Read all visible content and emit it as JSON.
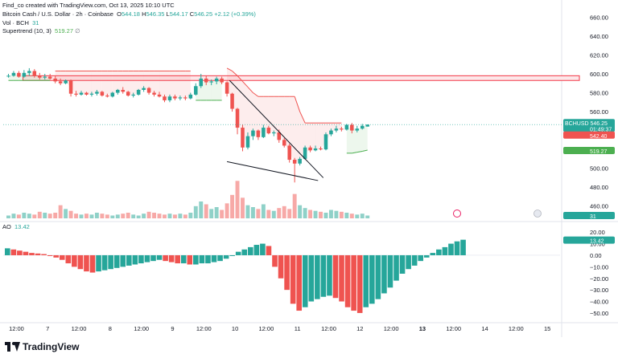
{
  "attribution": "Find_co created with TradingView.com, Oct 13, 2025 10:10 UTC",
  "header": {
    "symbol": "Bitcoin Cash / U.S. Dollar · 2h · Coinbase",
    "o_label": "O",
    "o_value": "544.18",
    "h_label": "H",
    "h_value": "546.35",
    "l_label": "L",
    "l_value": "544.17",
    "c_label": "C",
    "c_value": "546.25",
    "change": "+2.12 (+0.39%)",
    "vol_label": "Vol · BCH",
    "vol_value": "31",
    "st_label": "Supertrend (10, 3)",
    "st_value": "519.27"
  },
  "ao_header": {
    "label": "AO",
    "value": "13.42"
  },
  "brand": "TradingView",
  "colors": {
    "up": "#26a69a",
    "down": "#ef5350",
    "vol_up": "#8fd1c8",
    "vol_down": "#f7a9a7",
    "st_up": "#4caf50",
    "st_down": "#ef5350",
    "resistance_fill": "#fde7e9",
    "resistance_border": "#f23645",
    "trendline": "#131722"
  },
  "price_badges": [
    {
      "text": "BCHUSD",
      "value": "546.25",
      "sub": "01:49:37",
      "color": "#26a69a"
    },
    {
      "value": "542.40",
      "color": "#ef5350"
    },
    {
      "value": "519.27",
      "color": "#4caf50"
    },
    {
      "value": "31",
      "color": "#26a69a"
    },
    {
      "value": "13.42",
      "color": "#26a69a"
    }
  ],
  "chart_data": {
    "type": "candlestick",
    "price_axis": {
      "ticks": [
        460,
        480,
        500,
        520,
        540,
        560,
        580,
        600,
        620,
        640,
        660
      ],
      "ylim": [
        447,
        668
      ]
    },
    "ao_axis": {
      "ticks": [
        20,
        10,
        0,
        -10,
        -20,
        -30,
        -40,
        -50
      ],
      "tick_labels": [
        "20.00",
        "10.00",
        "0.00",
        "−10.00",
        "−20.00",
        "−30.00",
        "−40.00",
        "−50.00"
      ],
      "ylim": [
        -57,
        25
      ]
    },
    "x_axis": {
      "tick_labels": [
        "12:00",
        "7",
        "12:00",
        "8",
        "12:00",
        "9",
        "12:00",
        "10",
        "12:00",
        "11",
        "12:00",
        "12",
        "12:00",
        "13",
        "12:00",
        "14",
        "12:00",
        "15"
      ],
      "tick_index": [
        0,
        6,
        12,
        18,
        24,
        30,
        36,
        42,
        48,
        54,
        60,
        66,
        72,
        78,
        84,
        90,
        96,
        102
      ],
      "bold_labels": [
        "13"
      ],
      "xlim": [
        -1,
        106
      ]
    },
    "candles": [
      {
        "o": 598,
        "h": 600,
        "l": 596,
        "c": 598
      },
      {
        "o": 598,
        "h": 603,
        "l": 597,
        "c": 601
      },
      {
        "o": 601,
        "h": 603,
        "l": 596,
        "c": 597
      },
      {
        "o": 597,
        "h": 604,
        "l": 596,
        "c": 601
      },
      {
        "o": 601,
        "h": 606,
        "l": 598,
        "c": 603
      },
      {
        "o": 603,
        "h": 605,
        "l": 596,
        "c": 598
      },
      {
        "o": 598,
        "h": 601,
        "l": 594,
        "c": 596
      },
      {
        "o": 596,
        "h": 600,
        "l": 594,
        "c": 597
      },
      {
        "o": 597,
        "h": 600,
        "l": 594,
        "c": 595
      },
      {
        "o": 595,
        "h": 598,
        "l": 590,
        "c": 592
      },
      {
        "o": 592,
        "h": 595,
        "l": 588,
        "c": 590
      },
      {
        "o": 590,
        "h": 594,
        "l": 589,
        "c": 593
      },
      {
        "o": 593,
        "h": 594,
        "l": 576,
        "c": 579
      },
      {
        "o": 579,
        "h": 582,
        "l": 576,
        "c": 578
      },
      {
        "o": 578,
        "h": 582,
        "l": 577,
        "c": 580
      },
      {
        "o": 580,
        "h": 581,
        "l": 577,
        "c": 578
      },
      {
        "o": 578,
        "h": 581,
        "l": 576,
        "c": 579
      },
      {
        "o": 579,
        "h": 583,
        "l": 577,
        "c": 581
      },
      {
        "o": 581,
        "h": 582,
        "l": 576,
        "c": 577
      },
      {
        "o": 577,
        "h": 579,
        "l": 575,
        "c": 576
      },
      {
        "o": 576,
        "h": 581,
        "l": 575,
        "c": 580
      },
      {
        "o": 580,
        "h": 584,
        "l": 578,
        "c": 583
      },
      {
        "o": 583,
        "h": 586,
        "l": 579,
        "c": 581
      },
      {
        "o": 581,
        "h": 582,
        "l": 576,
        "c": 577
      },
      {
        "o": 577,
        "h": 580,
        "l": 575,
        "c": 578
      },
      {
        "o": 578,
        "h": 584,
        "l": 577,
        "c": 583
      },
      {
        "o": 583,
        "h": 587,
        "l": 581,
        "c": 585
      },
      {
        "o": 585,
        "h": 586,
        "l": 578,
        "c": 580
      },
      {
        "o": 580,
        "h": 582,
        "l": 576,
        "c": 578
      },
      {
        "o": 578,
        "h": 581,
        "l": 575,
        "c": 576
      },
      {
        "o": 576,
        "h": 578,
        "l": 570,
        "c": 572
      },
      {
        "o": 572,
        "h": 578,
        "l": 570,
        "c": 576
      },
      {
        "o": 576,
        "h": 578,
        "l": 572,
        "c": 574
      },
      {
        "o": 574,
        "h": 577,
        "l": 572,
        "c": 575
      },
      {
        "o": 575,
        "h": 577,
        "l": 572,
        "c": 574
      },
      {
        "o": 574,
        "h": 580,
        "l": 573,
        "c": 578
      },
      {
        "o": 578,
        "h": 590,
        "l": 577,
        "c": 587
      },
      {
        "o": 587,
        "h": 600,
        "l": 585,
        "c": 595
      },
      {
        "o": 595,
        "h": 598,
        "l": 588,
        "c": 591
      },
      {
        "o": 591,
        "h": 594,
        "l": 588,
        "c": 592
      },
      {
        "o": 592,
        "h": 597,
        "l": 589,
        "c": 595
      },
      {
        "o": 595,
        "h": 597,
        "l": 589,
        "c": 591
      },
      {
        "o": 591,
        "h": 592,
        "l": 576,
        "c": 579
      },
      {
        "o": 579,
        "h": 580,
        "l": 560,
        "c": 563
      },
      {
        "o": 563,
        "h": 564,
        "l": 536,
        "c": 543
      },
      {
        "o": 543,
        "h": 546,
        "l": 518,
        "c": 522
      },
      {
        "o": 522,
        "h": 538,
        "l": 520,
        "c": 534
      },
      {
        "o": 534,
        "h": 542,
        "l": 530,
        "c": 540
      },
      {
        "o": 540,
        "h": 541,
        "l": 530,
        "c": 533
      },
      {
        "o": 533,
        "h": 546,
        "l": 532,
        "c": 543
      },
      {
        "o": 543,
        "h": 545,
        "l": 536,
        "c": 537
      },
      {
        "o": 537,
        "h": 540,
        "l": 534,
        "c": 538
      },
      {
        "o": 538,
        "h": 541,
        "l": 527,
        "c": 530
      },
      {
        "o": 530,
        "h": 532,
        "l": 522,
        "c": 524
      },
      {
        "o": 524,
        "h": 526,
        "l": 506,
        "c": 509
      },
      {
        "o": 509,
        "h": 511,
        "l": 485,
        "c": 505
      },
      {
        "o": 505,
        "h": 512,
        "l": 503,
        "c": 510
      },
      {
        "o": 510,
        "h": 524,
        "l": 509,
        "c": 522
      },
      {
        "o": 522,
        "h": 524,
        "l": 517,
        "c": 519
      },
      {
        "o": 519,
        "h": 524,
        "l": 518,
        "c": 521
      },
      {
        "o": 521,
        "h": 523,
        "l": 519,
        "c": 520
      },
      {
        "o": 520,
        "h": 538,
        "l": 519,
        "c": 536
      },
      {
        "o": 536,
        "h": 542,
        "l": 534,
        "c": 540
      },
      {
        "o": 540,
        "h": 545,
        "l": 538,
        "c": 542
      },
      {
        "o": 542,
        "h": 544,
        "l": 539,
        "c": 541
      },
      {
        "o": 541,
        "h": 547,
        "l": 540,
        "c": 546
      },
      {
        "o": 546,
        "h": 548,
        "l": 537,
        "c": 540
      },
      {
        "o": 540,
        "h": 545,
        "l": 538,
        "c": 542
      },
      {
        "o": 542,
        "h": 547,
        "l": 541,
        "c": 545
      },
      {
        "o": 544.18,
        "h": 546.35,
        "l": 544.17,
        "c": 546.25
      }
    ],
    "volumes": [
      3,
      5,
      4,
      6,
      5,
      4,
      7,
      6,
      5,
      6,
      14,
      10,
      8,
      5,
      4,
      5,
      4,
      6,
      5,
      4,
      3,
      4,
      5,
      6,
      4,
      3,
      5,
      7,
      6,
      5,
      4,
      5,
      4,
      5,
      4,
      6,
      13,
      18,
      15,
      10,
      12,
      9,
      16,
      25,
      40,
      22,
      14,
      12,
      10,
      15,
      9,
      8,
      11,
      13,
      10,
      26,
      14,
      11,
      9,
      8,
      7,
      6,
      9,
      8,
      7,
      6,
      5,
      4,
      5,
      3
    ],
    "supertrend": [
      593,
      593,
      593,
      593,
      593,
      593,
      593,
      593,
      593,
      603,
      603,
      603,
      603,
      603,
      603,
      603,
      603,
      603,
      603,
      603,
      603,
      603,
      603,
      603,
      603,
      603,
      603,
      603,
      603,
      603,
      603,
      603,
      603,
      603,
      603,
      603,
      572,
      572,
      572,
      572,
      572,
      572,
      606,
      603,
      598,
      592,
      586,
      580,
      576,
      576,
      576,
      576,
      576,
      576,
      576,
      576,
      560,
      548,
      548,
      548,
      548,
      548,
      548,
      548,
      548,
      516,
      516,
      517,
      518,
      519.27
    ],
    "supertrend_dir": [
      "up",
      "up",
      "up",
      "up",
      "up",
      "up",
      "up",
      "up",
      "up",
      "down",
      "down",
      "down",
      "down",
      "down",
      "down",
      "down",
      "down",
      "down",
      "down",
      "down",
      "down",
      "down",
      "down",
      "down",
      "down",
      "down",
      "down",
      "down",
      "down",
      "down",
      "down",
      "down",
      "down",
      "down",
      "down",
      "down",
      "up",
      "up",
      "up",
      "up",
      "up",
      "up",
      "down",
      "down",
      "down",
      "down",
      "down",
      "down",
      "down",
      "down",
      "down",
      "down",
      "down",
      "down",
      "down",
      "down",
      "down",
      "down",
      "down",
      "down",
      "down",
      "down",
      "down",
      "down",
      "down",
      "up",
      "up",
      "up",
      "up",
      "up"
    ],
    "ao": [
      6,
      5,
      4,
      3,
      2,
      1.5,
      1,
      0,
      -2,
      -4,
      -7,
      -10,
      -12,
      -14,
      -15,
      -14,
      -13,
      -12,
      -11,
      -10,
      -9,
      -8,
      -7,
      -6,
      -5,
      -4,
      -5,
      -6,
      -7,
      -7,
      -8,
      -8,
      -7,
      -7,
      -6,
      -5,
      -3,
      0,
      3,
      5,
      7,
      9,
      10,
      8,
      -10,
      -20,
      -30,
      -42,
      -48,
      -45,
      -40,
      -38,
      -36,
      -35,
      -37,
      -40,
      -45,
      -48,
      -50,
      -45,
      -42,
      -38,
      -33,
      -28,
      -22,
      -16,
      -12,
      -9,
      -5,
      -2,
      2,
      5,
      7,
      10,
      12,
      13.42
    ],
    "ao_start_index": -6,
    "resistance_zone": {
      "y_low": 593,
      "y_high": 598
    },
    "trendlines": [
      {
        "x1": 42.5,
        "y1": 593,
        "x2": 60.5,
        "y2": 490
      },
      {
        "x1": 42,
        "y1": 507,
        "x2": 59.5,
        "y2": 487
      }
    ]
  }
}
